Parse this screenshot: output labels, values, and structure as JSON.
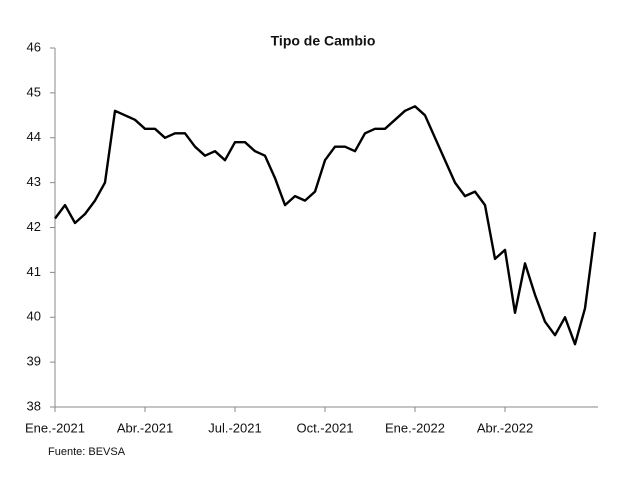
{
  "chart_data": {
    "type": "line",
    "title": "Tipo de Cambio",
    "source": "Fuente: BEVSA",
    "categories": [
      "Ene.-2021",
      null,
      null,
      null,
      null,
      null,
      null,
      null,
      null,
      "Abr.-2021",
      null,
      null,
      null,
      null,
      null,
      null,
      null,
      null,
      "Jul.-2021",
      null,
      null,
      null,
      null,
      null,
      null,
      null,
      null,
      "Oct.-2021",
      null,
      null,
      null,
      null,
      null,
      null,
      null,
      null,
      "Ene.-2022",
      null,
      null,
      null,
      null,
      null,
      null,
      null,
      null,
      "Abr.-2022",
      null,
      null,
      null,
      null,
      null,
      null,
      null,
      null,
      null
    ],
    "series": [
      {
        "color": "#000000",
        "values": [
          42.2,
          42.5,
          42.1,
          42.3,
          42.6,
          43.0,
          44.6,
          44.5,
          44.4,
          44.2,
          44.2,
          44.0,
          44.1,
          44.1,
          43.8,
          43.6,
          43.7,
          43.5,
          43.9,
          43.9,
          43.7,
          43.6,
          43.1,
          42.5,
          42.7,
          42.6,
          42.8,
          43.5,
          43.8,
          43.8,
          43.7,
          44.1,
          44.2,
          44.2,
          44.4,
          44.6,
          44.7,
          44.5,
          44.0,
          43.5,
          43.0,
          42.7,
          42.8,
          42.5,
          41.3,
          41.5,
          40.1,
          41.2,
          40.5,
          39.9,
          39.6,
          40.0,
          39.4,
          40.2,
          41.9
        ]
      }
    ],
    "ylim": [
      38,
      46
    ],
    "yticks": [
      38,
      39,
      40,
      41,
      42,
      43,
      44,
      45,
      46
    ],
    "grid": false
  }
}
